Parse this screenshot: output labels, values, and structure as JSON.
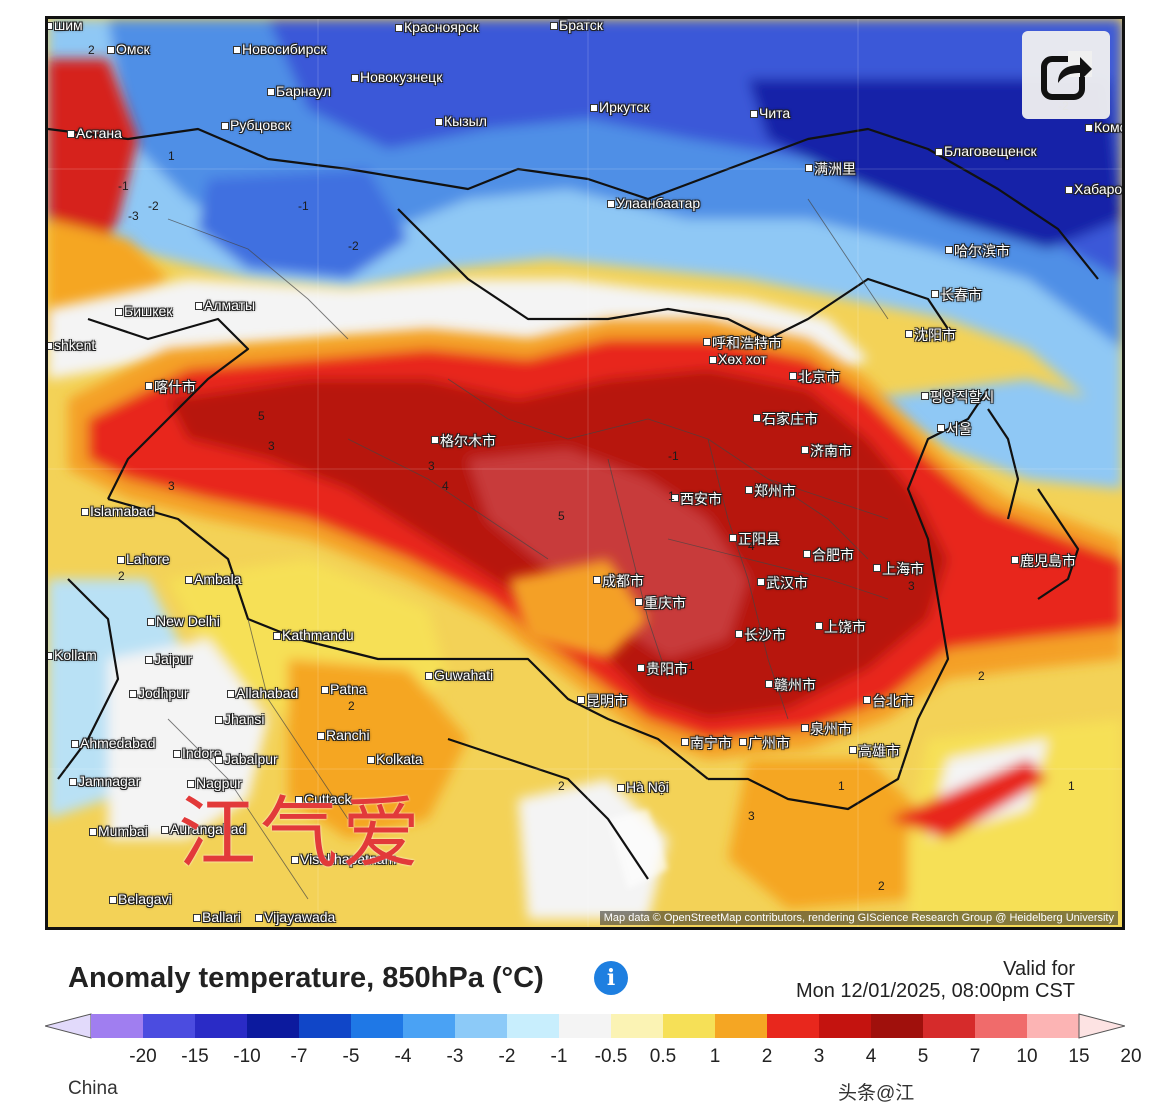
{
  "map": {
    "attribution": "Map data © OpenStreetMap contributors, rendering GIScience Research Group @ Heidelberg University",
    "watermark": "江气爱",
    "share_icon": "share-icon",
    "cities": [
      {
        "name": "шим"
      },
      {
        "name": "Красноярск"
      },
      {
        "name": "Братск"
      },
      {
        "name": "Омск"
      },
      {
        "name": "Новосибирск"
      },
      {
        "name": "Новокузнецк"
      },
      {
        "name": "Барнаул"
      },
      {
        "name": "Иркутск"
      },
      {
        "name": "Чита"
      },
      {
        "name": "Астана"
      },
      {
        "name": "Рубцовск"
      },
      {
        "name": "Кызыл"
      },
      {
        "name": "Благовещенск"
      },
      {
        "name": "Хабаро"
      },
      {
        "name": "Комс"
      },
      {
        "name": "满洲里"
      },
      {
        "name": "Улаанбаатар"
      },
      {
        "name": "哈尔滨市"
      },
      {
        "name": "长春市"
      },
      {
        "name": "Бишкек"
      },
      {
        "name": "Алматы"
      },
      {
        "name": "shkent"
      },
      {
        "name": "喀什市"
      },
      {
        "name": "呼和浩特市"
      },
      {
        "name": "Хөх хот"
      },
      {
        "name": "沈阳市"
      },
      {
        "name": "北京市"
      },
      {
        "name": "평양직할시"
      },
      {
        "name": "石家庄市"
      },
      {
        "name": "서울"
      },
      {
        "name": "格尔木市"
      },
      {
        "name": "济南市"
      },
      {
        "name": "西安市"
      },
      {
        "name": "郑州市"
      },
      {
        "name": "Islamabad"
      },
      {
        "name": "正阳县"
      },
      {
        "name": "合肥市"
      },
      {
        "name": "上海市"
      },
      {
        "name": "Lahore"
      },
      {
        "name": "Ambala"
      },
      {
        "name": "成都市"
      },
      {
        "name": "武汉市"
      },
      {
        "name": "重庆市"
      },
      {
        "name": "New Delhi"
      },
      {
        "name": "Kathmandu"
      },
      {
        "name": "长沙市"
      },
      {
        "name": "上饶市"
      },
      {
        "name": "Jaipur"
      },
      {
        "name": "Guwahati"
      },
      {
        "name": "贵阳市"
      },
      {
        "name": "Patna"
      },
      {
        "name": "Jodhpur"
      },
      {
        "name": "Allahabad"
      },
      {
        "name": "昆明市"
      },
      {
        "name": "赣州市"
      },
      {
        "name": "台北市"
      },
      {
        "name": "Jhansi"
      },
      {
        "name": "Ranchi"
      },
      {
        "name": "Ahmedabad"
      },
      {
        "name": "Indore"
      },
      {
        "name": "Kolkata"
      },
      {
        "name": "南宁市"
      },
      {
        "name": "广州市"
      },
      {
        "name": "泉州市"
      },
      {
        "name": "高雄市"
      },
      {
        "name": "Jamnagar"
      },
      {
        "name": "Nagpur"
      },
      {
        "name": "Hà Nội"
      },
      {
        "name": "Cuttack"
      },
      {
        "name": "Mumbai"
      },
      {
        "name": "Aurangabad"
      },
      {
        "name": "Visakhapatnam"
      },
      {
        "name": "Belagavi"
      },
      {
        "name": "Ballari"
      },
      {
        "name": "Vijayawada"
      },
      {
        "name": "鹿児島市"
      },
      {
        "name": "Kollam"
      },
      {
        "name": "Jabalpur"
      }
    ],
    "contour_values": [
      "2",
      "-3",
      "-1",
      "-2",
      "1",
      "5",
      "3",
      "-1",
      "-2",
      "4",
      "1",
      "2",
      "3",
      "5",
      "4",
      "3",
      "2",
      "1",
      "-1",
      "-2",
      "2",
      "3",
      "1",
      "2",
      "1",
      "3",
      "2"
    ]
  },
  "legend": {
    "title": "Anomaly temperature, 850hPa (°C)",
    "info_icon": "info-icon",
    "valid_for_label": "Valid for",
    "valid_for_date": "Mon 12/01/2025, 08:00pm CST",
    "ticks": [
      "-20",
      "-15",
      "-10",
      "-7",
      "-5",
      "-4",
      "-3",
      "-2",
      "-1",
      "-0.5",
      "0.5",
      "1",
      "2",
      "3",
      "4",
      "5",
      "7",
      "10",
      "15",
      "20"
    ],
    "colors": [
      "#e2dafb",
      "#a07ef0",
      "#4b4ce0",
      "#2a2bc6",
      "#0c1a9e",
      "#1046c8",
      "#1f78e6",
      "#4aa2f4",
      "#8ccaf8",
      "#c8eefd",
      "#f4f4f4",
      "#fbf3b4",
      "#f6e057",
      "#f5a623",
      "#e8271d",
      "#c4130f",
      "#a0100c",
      "#d62b2b",
      "#f06b6b",
      "#fcb4b4",
      "#fde3e3"
    ]
  },
  "footer": {
    "left": "China",
    "right": "头条@江"
  }
}
